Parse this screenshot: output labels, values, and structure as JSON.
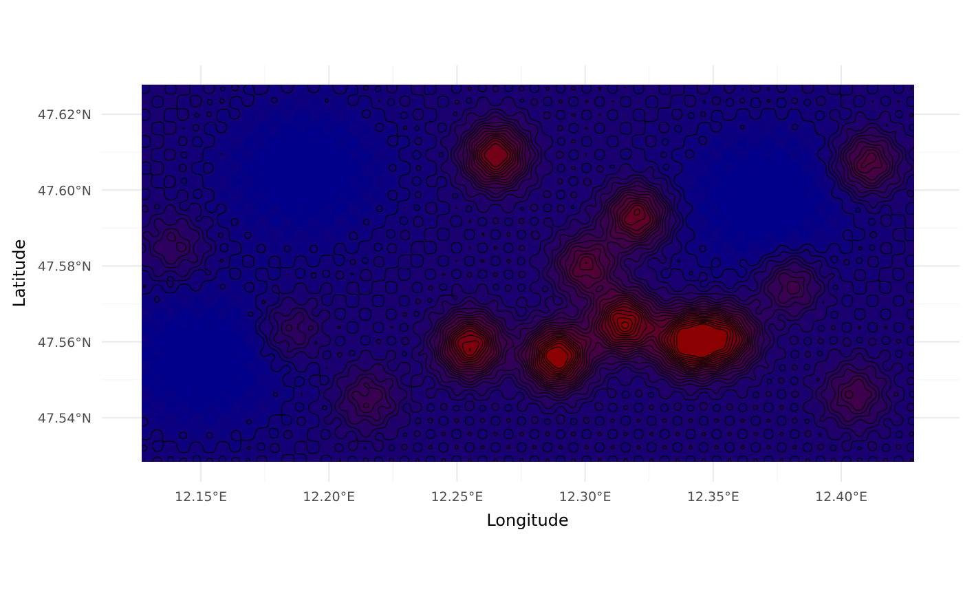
{
  "chart_data": {
    "type": "heatmap",
    "subtype": "raster elevation map with contour lines",
    "xlabel": "Longitude",
    "ylabel": "Latitude",
    "x_ticks": [
      12.15,
      12.2,
      12.25,
      12.3,
      12.35,
      12.4
    ],
    "x_tick_labels": [
      "12.15°E",
      "12.20°E",
      "12.25°E",
      "12.30°E",
      "12.35°E",
      "12.40°E"
    ],
    "y_ticks": [
      47.54,
      47.56,
      47.58,
      47.6,
      47.62
    ],
    "y_tick_labels": [
      "47.54°N",
      "47.56°N",
      "47.58°N",
      "47.60°N",
      "47.62°N"
    ],
    "xlim": [
      12.127,
      12.428
    ],
    "ylim": [
      47.5285,
      47.6275
    ],
    "raster_extent": {
      "lon": [
        12.127,
        12.428
      ],
      "lat": [
        47.5285,
        47.6275
      ]
    },
    "color_scale": {
      "low": "#00008B",
      "high": "#8B0000"
    },
    "grid": true,
    "legend": "none",
    "highs": [
      {
        "lon": 12.265,
        "lat": 47.609,
        "level": 0.78
      },
      {
        "lon": 12.255,
        "lat": 47.559,
        "level": 0.85
      },
      {
        "lon": 12.289,
        "lat": 47.556,
        "level": 0.98
      },
      {
        "lon": 12.315,
        "lat": 47.565,
        "level": 0.88
      },
      {
        "lon": 12.34,
        "lat": 47.56,
        "level": 0.97
      },
      {
        "lon": 12.355,
        "lat": 47.561,
        "level": 0.75
      },
      {
        "lon": 12.32,
        "lat": 47.593,
        "level": 0.7
      },
      {
        "lon": 12.41,
        "lat": 47.607,
        "level": 0.55
      },
      {
        "lon": 12.185,
        "lat": 47.563,
        "level": 0.32
      },
      {
        "lon": 12.14,
        "lat": 47.585,
        "level": 0.3
      },
      {
        "lon": 12.38,
        "lat": 47.575,
        "level": 0.42
      },
      {
        "lon": 12.3,
        "lat": 47.58,
        "level": 0.55
      },
      {
        "lon": 12.215,
        "lat": 47.545,
        "level": 0.35
      },
      {
        "lon": 12.405,
        "lat": 47.546,
        "level": 0.4
      }
    ],
    "lows": [
      {
        "lon": 12.19,
        "lat": 47.605,
        "level": 0.0
      },
      {
        "lon": 12.15,
        "lat": 47.555,
        "level": 0.08
      },
      {
        "lon": 12.37,
        "lat": 47.598,
        "level": 0.05
      }
    ]
  }
}
